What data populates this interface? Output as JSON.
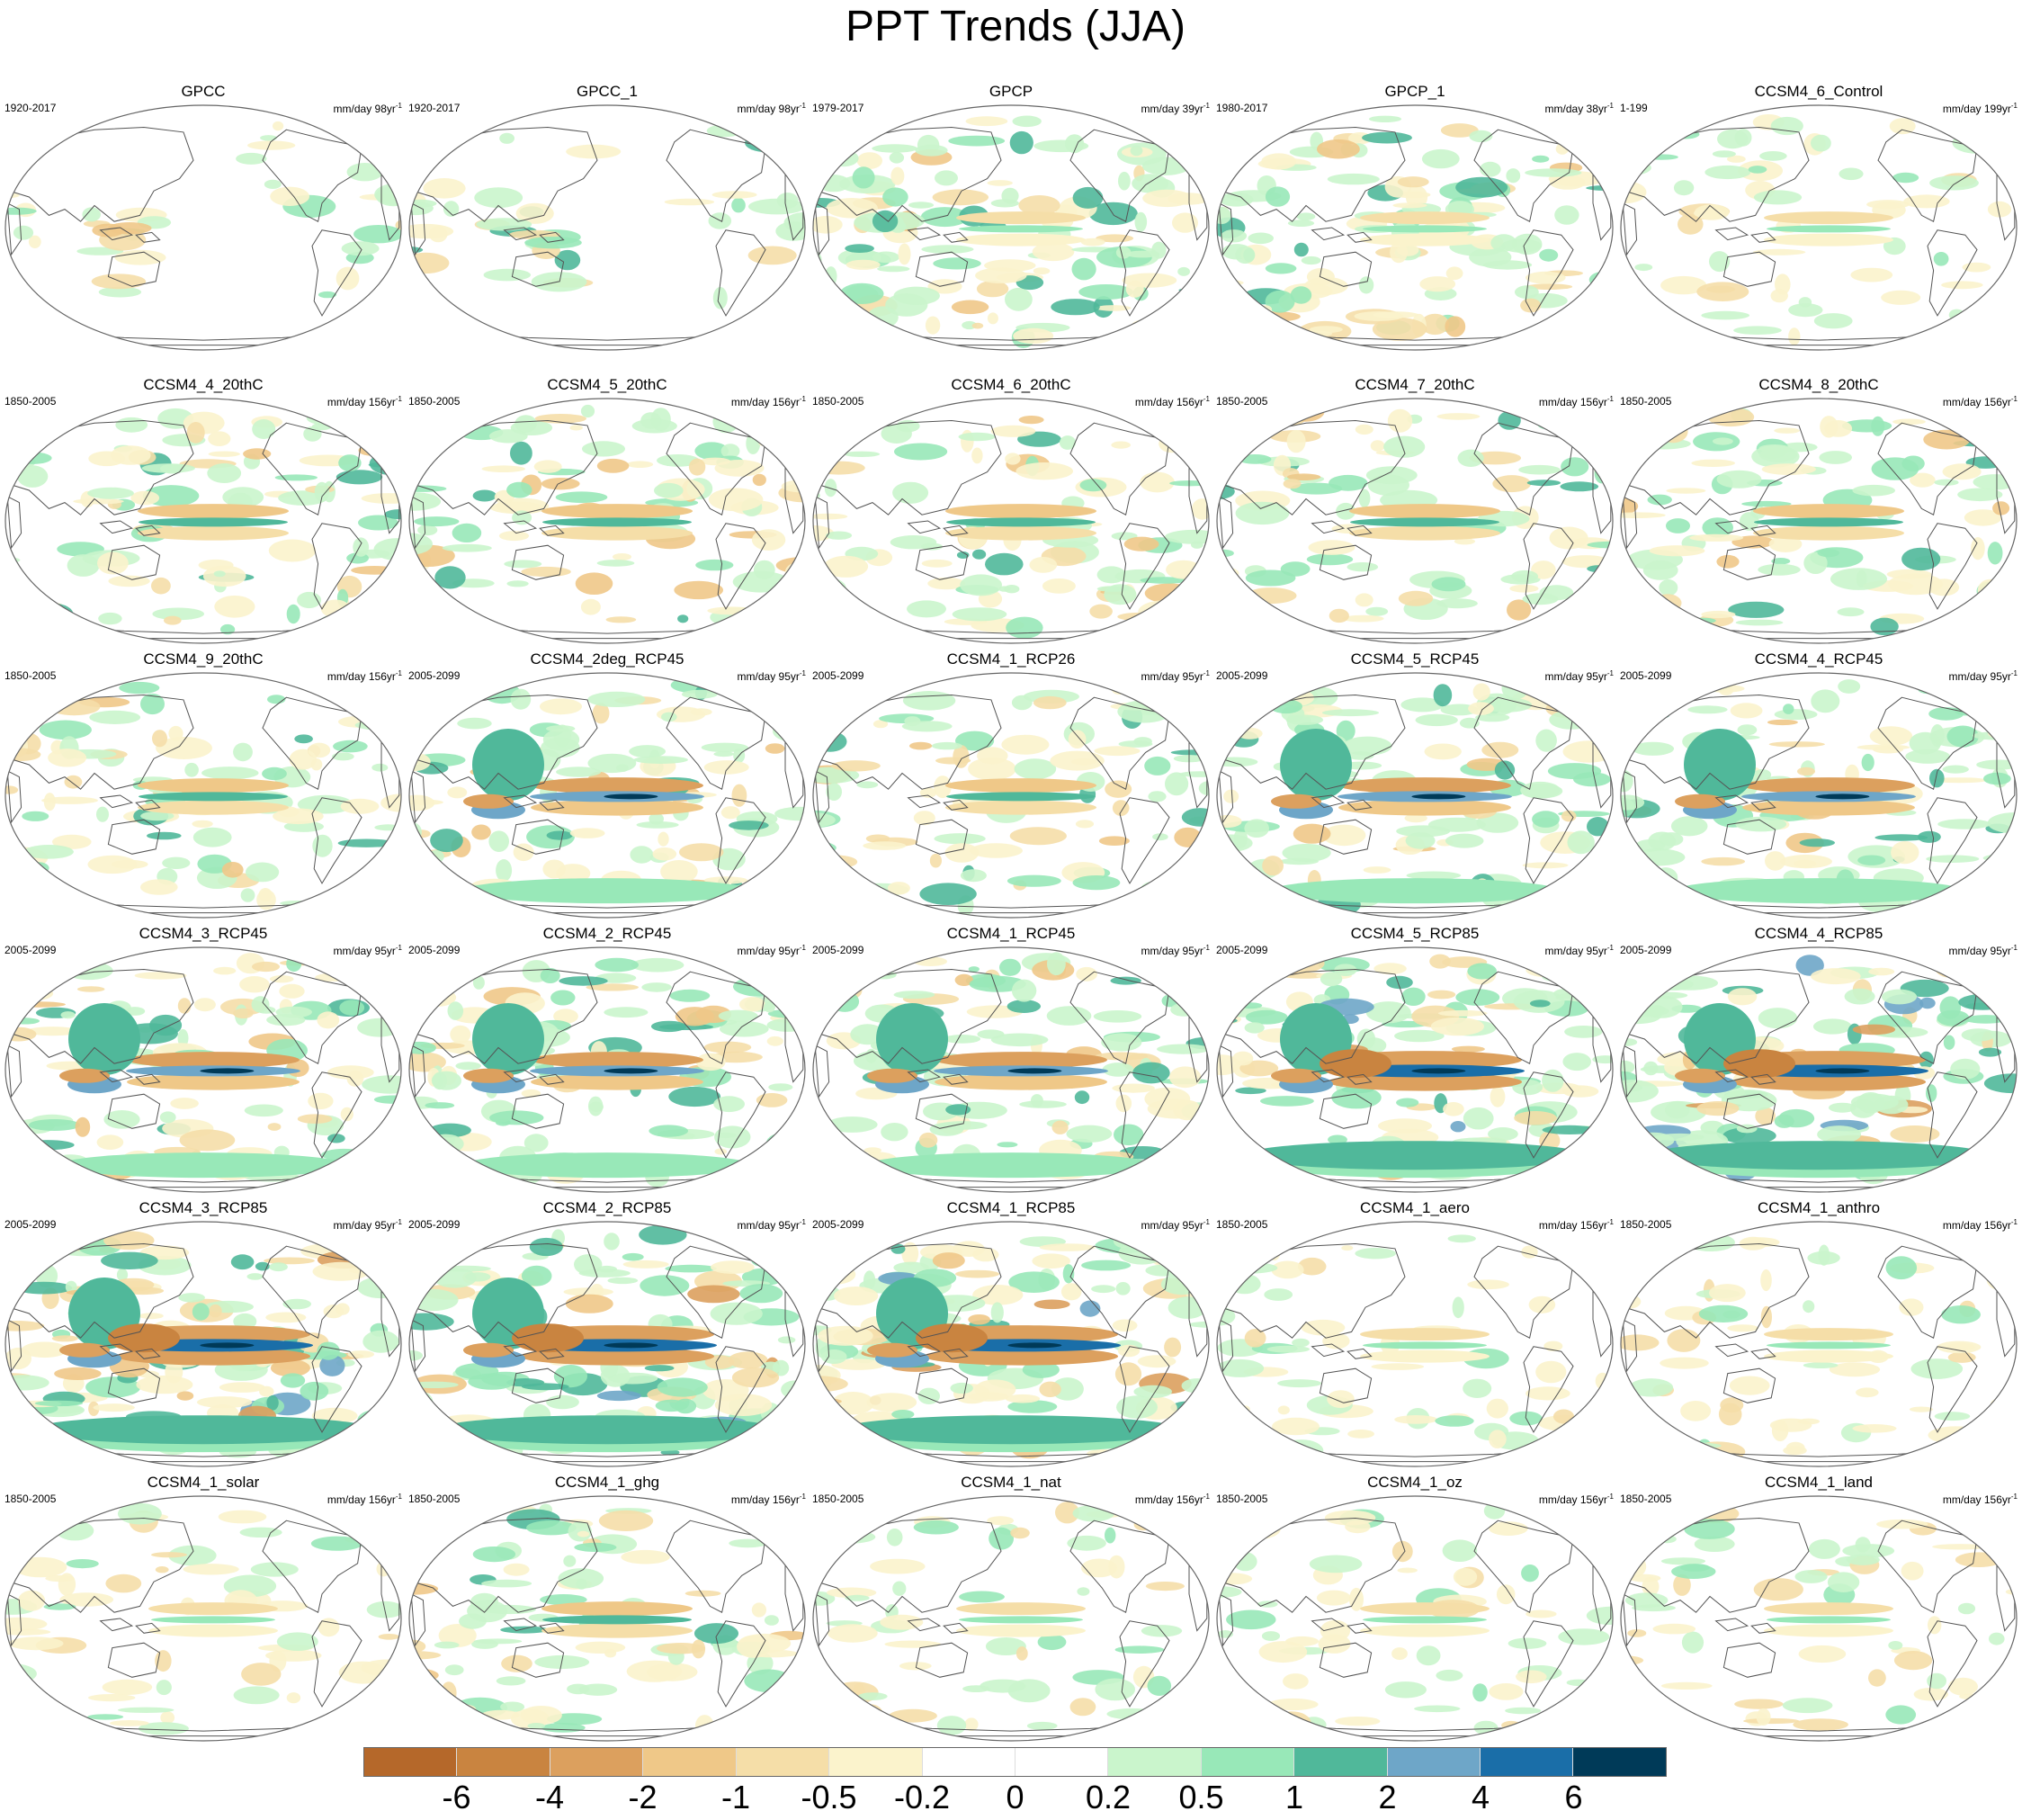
{
  "title": "PPT Trends (JJA)",
  "units_prefix": "mm/day ",
  "colors": {
    "land_outline": "#555555",
    "ellipse_border": "#666666"
  },
  "panels": [
    {
      "name": "GPCC",
      "period": "1920-2017",
      "span": "98yr",
      "row": 0,
      "col": 0,
      "style": "obs-land"
    },
    {
      "name": "GPCC_1",
      "period": "1920-2017",
      "span": "98yr",
      "row": 0,
      "col": 1,
      "style": "obs-land"
    },
    {
      "name": "GPCP",
      "period": "1979-2017",
      "span": "39yr",
      "row": 0,
      "col": 2,
      "style": "obs-global"
    },
    {
      "name": "GPCP_1",
      "period": "1980-2017",
      "span": "38yr",
      "row": 0,
      "col": 3,
      "style": "obs-global"
    },
    {
      "name": "CCSM4_6_Control",
      "period": "1-199",
      "span": "199yr",
      "row": 0,
      "col": 4,
      "style": "weak"
    },
    {
      "name": "CCSM4_4_20thC",
      "period": "1850-2005",
      "span": "156yr",
      "row": 1,
      "col": 0,
      "style": "moderate"
    },
    {
      "name": "CCSM4_5_20thC",
      "period": "1850-2005",
      "span": "156yr",
      "row": 1,
      "col": 1,
      "style": "moderate"
    },
    {
      "name": "CCSM4_6_20thC",
      "period": "1850-2005",
      "span": "156yr",
      "row": 1,
      "col": 2,
      "style": "moderate"
    },
    {
      "name": "CCSM4_7_20thC",
      "period": "1850-2005",
      "span": "156yr",
      "row": 1,
      "col": 3,
      "style": "moderate"
    },
    {
      "name": "CCSM4_8_20thC",
      "period": "1850-2005",
      "span": "156yr",
      "row": 1,
      "col": 4,
      "style": "moderate"
    },
    {
      "name": "CCSM4_9_20thC",
      "period": "1850-2005",
      "span": "156yr",
      "row": 2,
      "col": 0,
      "style": "moderate"
    },
    {
      "name": "CCSM4_2deg_RCP45",
      "period": "2005-2099",
      "span": "95yr",
      "row": 2,
      "col": 1,
      "style": "rcp45"
    },
    {
      "name": "CCSM4_1_RCP26",
      "period": "2005-2099",
      "span": "95yr",
      "row": 2,
      "col": 2,
      "style": "moderate"
    },
    {
      "name": "CCSM4_5_RCP45",
      "period": "2005-2099",
      "span": "95yr",
      "row": 2,
      "col": 3,
      "style": "rcp45"
    },
    {
      "name": "CCSM4_4_RCP45",
      "period": "2005-2099",
      "span": "95yr",
      "row": 2,
      "col": 4,
      "style": "rcp45"
    },
    {
      "name": "CCSM4_3_RCP45",
      "period": "2005-2099",
      "span": "95yr",
      "row": 3,
      "col": 0,
      "style": "rcp45"
    },
    {
      "name": "CCSM4_2_RCP45",
      "period": "2005-2099",
      "span": "95yr",
      "row": 3,
      "col": 1,
      "style": "rcp45"
    },
    {
      "name": "CCSM4_1_RCP45",
      "period": "2005-2099",
      "span": "95yr",
      "row": 3,
      "col": 2,
      "style": "rcp45"
    },
    {
      "name": "CCSM4_5_RCP85",
      "period": "2005-2099",
      "span": "95yr",
      "row": 3,
      "col": 3,
      "style": "rcp85"
    },
    {
      "name": "CCSM4_4_RCP85",
      "period": "2005-2099",
      "span": "95yr",
      "row": 3,
      "col": 4,
      "style": "rcp85"
    },
    {
      "name": "CCSM4_3_RCP85",
      "period": "2005-2099",
      "span": "95yr",
      "row": 4,
      "col": 0,
      "style": "rcp85"
    },
    {
      "name": "CCSM4_2_RCP85",
      "period": "2005-2099",
      "span": "95yr",
      "row": 4,
      "col": 1,
      "style": "rcp85"
    },
    {
      "name": "CCSM4_1_RCP85",
      "period": "2005-2099",
      "span": "95yr",
      "row": 4,
      "col": 2,
      "style": "rcp85"
    },
    {
      "name": "CCSM4_1_aero",
      "period": "1850-2005",
      "span": "156yr",
      "row": 4,
      "col": 3,
      "style": "weak-dry"
    },
    {
      "name": "CCSM4_1_anthro",
      "period": "1850-2005",
      "span": "156yr",
      "row": 4,
      "col": 4,
      "style": "weak-dry"
    },
    {
      "name": "CCSM4_1_solar",
      "period": "1850-2005",
      "span": "156yr",
      "row": 5,
      "col": 0,
      "style": "weak"
    },
    {
      "name": "CCSM4_1_ghg",
      "period": "1850-2005",
      "span": "156yr",
      "row": 5,
      "col": 1,
      "style": "moderate"
    },
    {
      "name": "CCSM4_1_nat",
      "period": "1850-2005",
      "span": "156yr",
      "row": 5,
      "col": 2,
      "style": "weak"
    },
    {
      "name": "CCSM4_1_oz",
      "period": "1850-2005",
      "span": "156yr",
      "row": 5,
      "col": 3,
      "style": "weak"
    },
    {
      "name": "CCSM4_1_land",
      "period": "1850-2005",
      "span": "156yr",
      "row": 5,
      "col": 4,
      "style": "weak"
    }
  ],
  "colorbar": {
    "colors": [
      "#b5682a",
      "#c98440",
      "#dca05e",
      "#efc888",
      "#f5dea8",
      "#fbf3cc",
      "#ffffff",
      "#ffffff",
      "#caf5cc",
      "#98e8b8",
      "#50b89a",
      "#6ea6c8",
      "#1a6ea8",
      "#003a58"
    ],
    "labels": [
      "-6",
      "-4",
      "-2",
      "-1",
      "-0.5",
      "-0.2",
      "0",
      "0.2",
      "0.5",
      "1",
      "2",
      "4",
      "6"
    ]
  }
}
